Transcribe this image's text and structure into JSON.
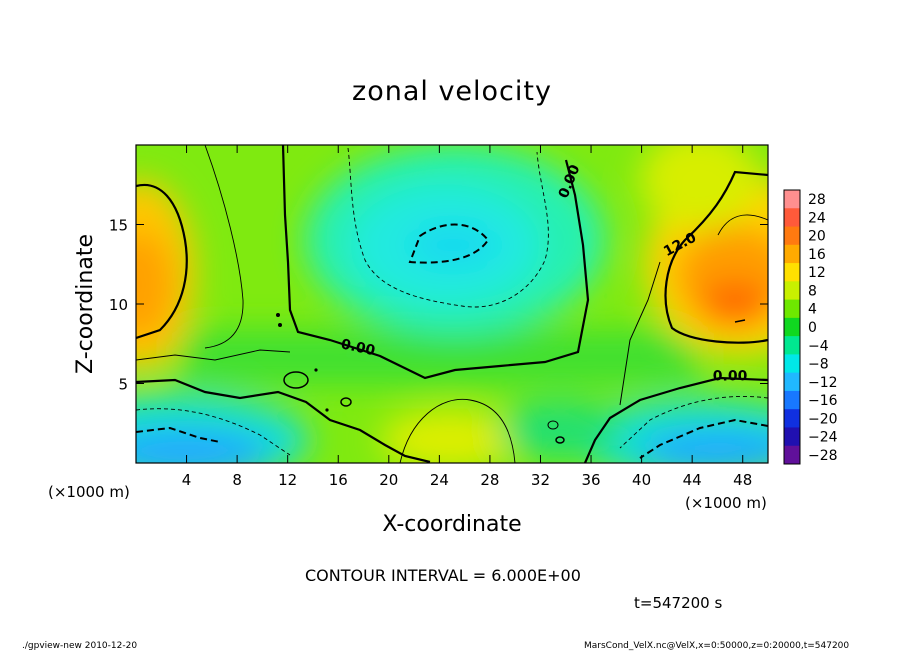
{
  "title": "zonal velocity",
  "contour_interval": "CONTOUR INTERVAL = 6.000E+00",
  "time_label": "t=547200 s",
  "footer": {
    "left": "./gpview-new  2010-12-20",
    "right": "MarsCond_VelX.nc@VelX,x=0:50000,z=0:20000,t=547200"
  },
  "chart_data": {
    "type": "heatmap",
    "title": "zonal velocity",
    "xlabel": "X-coordinate",
    "ylabel": "Z-coordinate",
    "x_unit_label": "(×1000 m)",
    "y_unit_label": "(×1000 m)",
    "xlim": [
      0,
      50
    ],
    "ylim": [
      0,
      20
    ],
    "x_ticks": [
      4,
      8,
      12,
      16,
      20,
      24,
      28,
      32,
      36,
      40,
      44,
      48
    ],
    "y_ticks": [
      5,
      10,
      15
    ],
    "x_tick_labels": [
      "4",
      "8",
      "12",
      "16",
      "20",
      "24",
      "28",
      "32",
      "36",
      "40",
      "44",
      "48"
    ],
    "y_tick_labels": [
      "5",
      "10",
      "15"
    ],
    "colorbar": {
      "levels": [
        28,
        24,
        20,
        16,
        12,
        8,
        4,
        0,
        -4,
        -8,
        -12,
        -16,
        -20,
        -24,
        -28
      ],
      "labels": [
        "28",
        "24",
        "20",
        "16",
        "12",
        "8",
        "4",
        "0",
        "−4",
        "−8",
        "−12",
        "−16",
        "−20",
        "−24",
        "−28"
      ],
      "colors": [
        "#ff8f8f",
        "#ff5a3a",
        "#ff7a10",
        "#ffaa00",
        "#ffe000",
        "#c8f000",
        "#6ee800",
        "#10d820",
        "#00e890",
        "#00e8e8",
        "#20b8ff",
        "#1878ff",
        "#1030e0",
        "#2010b0",
        "#60109a"
      ]
    },
    "contour_labels": [
      {
        "text": "0.00",
        "x": 34.6,
        "y": 17.6,
        "angle": -68
      },
      {
        "text": "12.0",
        "x": 43.2,
        "y": 13.5,
        "angle": -28
      },
      {
        "text": "0.00",
        "x": 17.5,
        "y": 7.0,
        "angle": 12
      },
      {
        "text": "0.00",
        "x": 47.0,
        "y": 5.2,
        "angle": 0
      }
    ],
    "contour_interval": 6.0,
    "time_s": 547200
  }
}
